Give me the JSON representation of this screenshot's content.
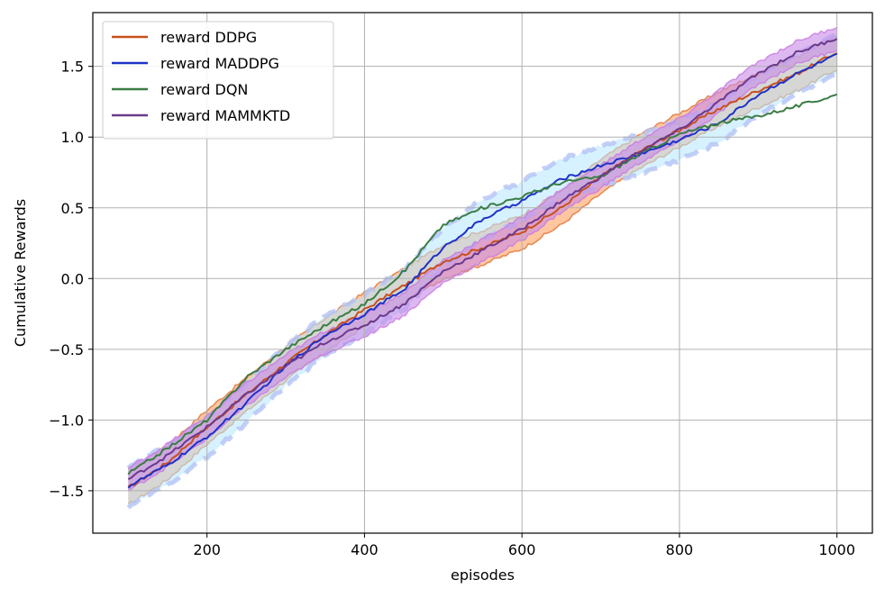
{
  "chart_data": {
    "type": "line",
    "xlabel": "episodes",
    "ylabel": "Cumulative Rewards",
    "xlim": [
      55,
      1045
    ],
    "ylim": [
      -1.8,
      1.88
    ],
    "x_ticks": [
      200,
      400,
      600,
      800,
      1000
    ],
    "y_ticks": [
      -1.5,
      -1.0,
      -0.5,
      0.0,
      0.5,
      1.0,
      1.5
    ],
    "x_tick_labels": [
      "200",
      "400",
      "600",
      "800",
      "1000"
    ],
    "y_tick_labels": [
      "−1.5",
      "−1.0",
      "−0.5",
      "0.0",
      "0.5",
      "1.0",
      "1.5"
    ],
    "grid": true,
    "legend_position": "top-left",
    "series": [
      {
        "name": "reward DDPG",
        "color": "#c8501e",
        "band_fill": "#ffa060",
        "band_edge": "#e07030",
        "band_style": "solid",
        "x": [
          100,
          150,
          200,
          250,
          300,
          350,
          400,
          450,
          500,
          550,
          600,
          650,
          700,
          750,
          800,
          850,
          900,
          950,
          1000
        ],
        "y": [
          -1.48,
          -1.3,
          -1.05,
          -0.82,
          -0.6,
          -0.4,
          -0.22,
          -0.05,
          0.12,
          0.22,
          0.33,
          0.5,
          0.72,
          0.9,
          1.05,
          1.2,
          1.33,
          1.45,
          1.6
        ],
        "band_halfwidth": 0.12
      },
      {
        "name": "reward MADDPG",
        "color": "#1e32c8",
        "band_fill": "#b4e6ff",
        "band_edge": "#b4c3f5",
        "band_style": "dashed",
        "x": [
          100,
          150,
          200,
          250,
          300,
          350,
          400,
          450,
          500,
          550,
          600,
          650,
          700,
          750,
          800,
          850,
          900,
          950,
          1000
        ],
        "y": [
          -1.47,
          -1.32,
          -1.12,
          -0.88,
          -0.62,
          -0.4,
          -0.25,
          -0.08,
          0.22,
          0.42,
          0.55,
          0.7,
          0.8,
          0.88,
          0.98,
          1.1,
          1.3,
          1.45,
          1.58
        ],
        "band_halfwidth": 0.14
      },
      {
        "name": "reward DQN",
        "color": "#3a7d44",
        "band_fill": "",
        "band_edge": "",
        "band_style": "none",
        "x": [
          100,
          150,
          200,
          250,
          300,
          350,
          400,
          450,
          500,
          550,
          600,
          650,
          700,
          750,
          800,
          850,
          900,
          950,
          1000
        ],
        "y": [
          -1.38,
          -1.2,
          -1.0,
          -0.7,
          -0.5,
          -0.33,
          -0.18,
          0.05,
          0.38,
          0.5,
          0.58,
          0.68,
          0.72,
          0.88,
          1.02,
          1.1,
          1.15,
          1.22,
          1.3
        ],
        "band_halfwidth": 0
      },
      {
        "name": "reward MAMMKTD",
        "color": "#6b3a8c",
        "band_fill": "#c88be8",
        "band_edge": "#c878e0",
        "band_style": "solid",
        "x": [
          100,
          150,
          200,
          250,
          300,
          350,
          400,
          450,
          500,
          550,
          600,
          650,
          700,
          750,
          800,
          850,
          900,
          950,
          1000
        ],
        "y": [
          -1.42,
          -1.25,
          -1.05,
          -0.82,
          -0.62,
          -0.45,
          -0.33,
          -0.18,
          0.05,
          0.2,
          0.35,
          0.55,
          0.72,
          0.9,
          1.05,
          1.25,
          1.45,
          1.6,
          1.7
        ],
        "band_halfwidth": 0.08
      }
    ]
  }
}
